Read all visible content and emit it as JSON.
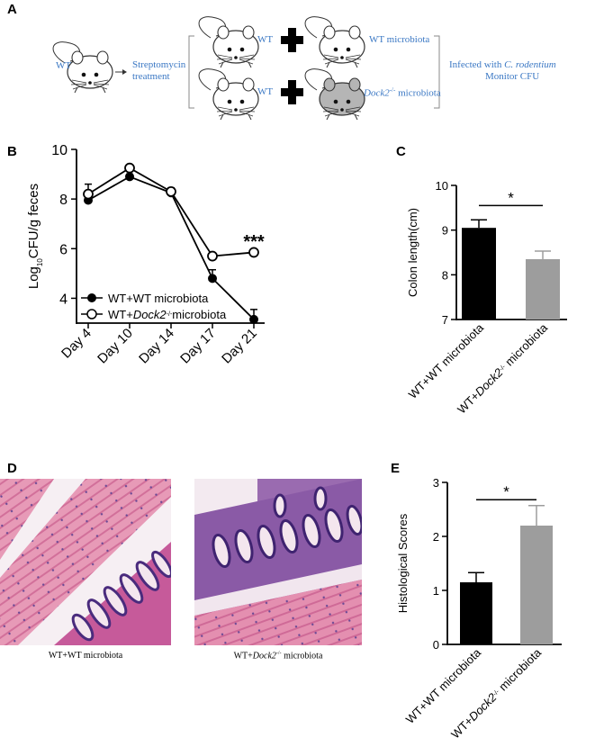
{
  "panels": {
    "a": {
      "letter": "A",
      "start_mouse_label": "WT",
      "step_label_line1": "Streptomycin",
      "step_label_line2": "treatment",
      "row1_left_label": "WT",
      "row1_right_label": "WT microbiota",
      "row2_left_label": "WT",
      "row2_right_label_italic": "Dock2",
      "row2_right_label_sup": "-/-",
      "row2_right_label_rest": " microbiota",
      "outcome_line1_prefix": "Infected with ",
      "outcome_line1_italic": "C. rodentium",
      "outcome_line2": "Monitor CFU",
      "colors": {
        "label": "#3b78c4",
        "mouse_white": "#ffffff",
        "mouse_gray": "#b5b5b5"
      }
    },
    "b": {
      "letter": "B"
    },
    "c": {
      "letter": "C"
    },
    "d": {
      "letter": "D",
      "caption_left": "WT+WT microbiota",
      "caption_right_prefix": "WT+",
      "caption_right_italic": "Dock2",
      "caption_right_sup": "-/-",
      "caption_right_rest": " microbiota",
      "colors": {
        "tissue_pink": "#e58fae",
        "nuclei_purple": "#5a3b86",
        "lumen": "#f4eef2"
      }
    },
    "e": {
      "letter": "E"
    }
  },
  "chart_data": [
    {
      "panel": "B",
      "type": "line",
      "categories": [
        "Day 4",
        "Day 10",
        "Day 14",
        "Day 17",
        "Day 21"
      ],
      "series": [
        {
          "name_prefix": "WT+WT microbiota",
          "marker": "filled",
          "values": [
            7.95,
            8.9,
            8.25,
            4.8,
            3.15
          ],
          "errors": [
            0.1,
            0.1,
            0.1,
            0.35,
            0.4
          ]
        },
        {
          "name_prefix": "WT+",
          "name_italic": "Dock2",
          "name_sup": "-/-",
          "name_suffix": "microbiota",
          "marker": "open",
          "values": [
            8.2,
            9.25,
            8.3,
            5.7,
            5.85
          ],
          "errors": [
            0.4,
            0.1,
            0.15,
            0.05,
            0.1
          ]
        }
      ],
      "ylabel_prefix": "Log",
      "ylabel_sub": "10",
      "ylabel_suffix": "CFU/g feces",
      "ylim": [
        3,
        10
      ],
      "yticks": [
        "4",
        "6",
        "8",
        "10"
      ],
      "annotation": "***",
      "legend": "bottom-left",
      "grid": false
    },
    {
      "panel": "C",
      "type": "bar",
      "categories": [
        {
          "prefix": "WT+WT microbiota"
        },
        {
          "prefix": "WT+",
          "italic": "Dock2",
          "sup": "-/-",
          "suffix": " microbiota"
        }
      ],
      "values": [
        9.05,
        8.35
      ],
      "errors": [
        0.18,
        0.18
      ],
      "colors": [
        "#000000",
        "#9d9d9d"
      ],
      "ylabel": "Colon length(cm)",
      "ylim": [
        7,
        10
      ],
      "yticks": [
        "7",
        "8",
        "9",
        "10"
      ],
      "annotation": "*",
      "grid": false
    },
    {
      "panel": "E",
      "type": "bar",
      "categories": [
        {
          "prefix": "WT+WT microbiota"
        },
        {
          "prefix": "WT+",
          "italic": "Dock2",
          "sup": "-/-",
          "suffix": " microbiota"
        }
      ],
      "values": [
        1.15,
        2.2
      ],
      "errors": [
        0.18,
        0.37
      ],
      "colors": [
        "#000000",
        "#9d9d9d"
      ],
      "ylabel": "Histological Scores",
      "ylim": [
        0,
        3
      ],
      "yticks": [
        "0",
        "1",
        "2",
        "3"
      ],
      "annotation": "*",
      "grid": false
    }
  ]
}
